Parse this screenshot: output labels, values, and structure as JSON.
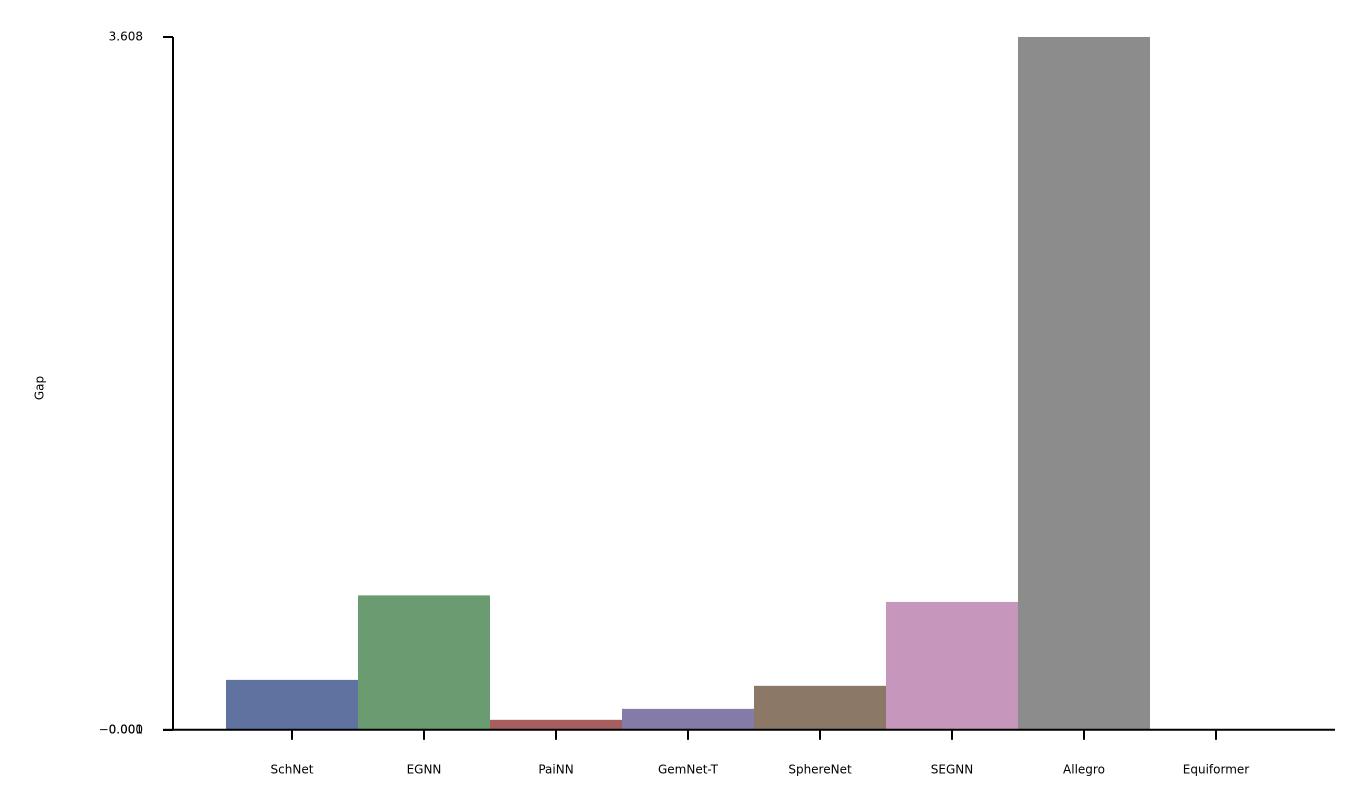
{
  "chart_data": {
    "type": "bar",
    "y_label": "Gap",
    "categories": [
      "SchNet",
      "EGNN",
      "PaiNN",
      "GemNet-T",
      "SphereNet",
      "SEGNN",
      "Allegro",
      "Equiformer"
    ],
    "values": [
      0.26,
      0.7,
      0.052,
      0.109,
      0.229,
      0.666,
      3.608,
      0
    ],
    "colors": [
      "#6072a0",
      "#6b9b71",
      "#a65f5e",
      "#857ba9",
      "#8b7867",
      "#c796bd",
      "#8c8c8c",
      "#c9b96e"
    ],
    "ylim": [
      -0.001,
      3.608
    ],
    "yticks": [
      {
        "value": -0.001,
        "label": "−0.001"
      },
      {
        "value": 0,
        "label": "0.000"
      },
      {
        "value": 3.608,
        "label": "3.608"
      }
    ],
    "grid": false
  }
}
